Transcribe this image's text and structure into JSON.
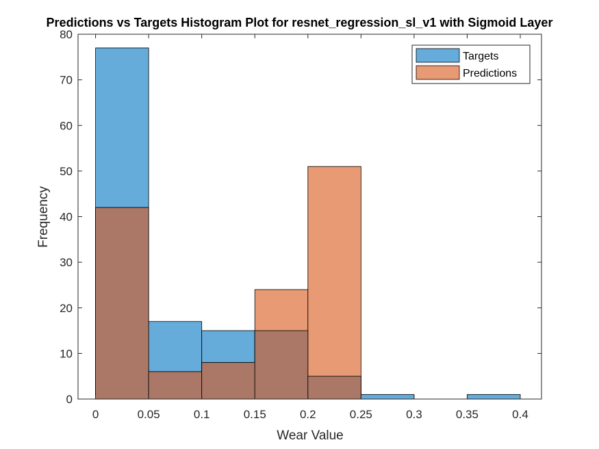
{
  "chart_data": {
    "type": "bar",
    "title": "Predictions vs Targets Histogram Plot for resnet_regression_sl_v1 with Sigmoid Layer",
    "xlabel": "Wear Value",
    "ylabel": "Frequency",
    "xlim": [
      -0.0165,
      0.42
    ],
    "ylim": [
      0,
      80
    ],
    "xticks": [
      "0",
      "0.05",
      "0.1",
      "0.15",
      "0.2",
      "0.25",
      "0.3",
      "0.35",
      "0.4"
    ],
    "yticks": [
      "0",
      "10",
      "20",
      "30",
      "40",
      "50",
      "60",
      "70",
      "80"
    ],
    "bin_edges": [
      0,
      0.05,
      0.1,
      0.15,
      0.2,
      0.25,
      0.3,
      0.35,
      0.4
    ],
    "series": [
      {
        "name": "Targets",
        "color": "#0072BD",
        "display_color": "#65ACDB",
        "values": [
          77,
          17,
          15,
          15,
          5,
          1,
          0,
          1
        ]
      },
      {
        "name": "Predictions",
        "color": "#D95319",
        "display_color": "#E89A74",
        "values": [
          42,
          6,
          8,
          24,
          51,
          0,
          0,
          0
        ]
      }
    ],
    "overlap_color": "#AB7867",
    "face_alpha": 0.6,
    "grid": false,
    "legend_position": "top-right"
  }
}
